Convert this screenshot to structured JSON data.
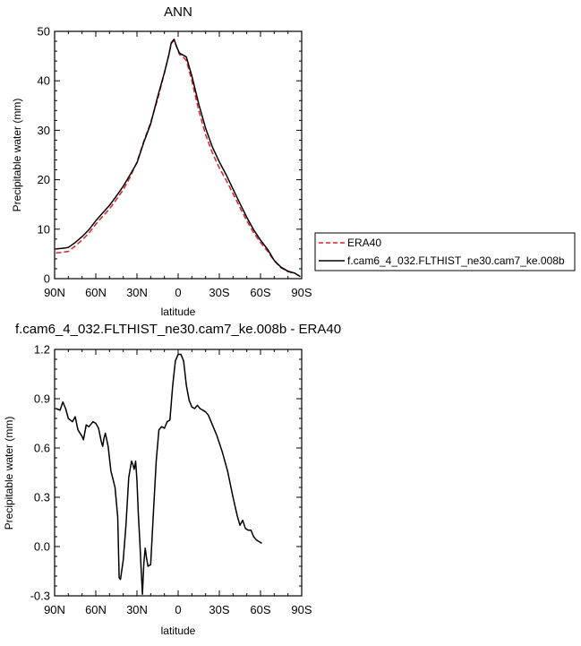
{
  "chart_data": [
    {
      "type": "line",
      "title": "ANN",
      "xlabel": "latitude",
      "ylabel": "Precipitable water (mm)",
      "ylim": [
        0,
        50
      ],
      "yticks": [
        "0",
        "10",
        "20",
        "30",
        "40",
        "50"
      ],
      "xlim": [
        90,
        -90
      ],
      "xticks": [
        {
          "v": 90,
          "label": "90N"
        },
        {
          "v": 60,
          "label": "60N"
        },
        {
          "v": 30,
          "label": "30N"
        },
        {
          "v": 0,
          "label": "0"
        },
        {
          "v": -30,
          "label": "30S"
        },
        {
          "v": -60,
          "label": "60S"
        },
        {
          "v": -90,
          "label": "90S"
        }
      ],
      "legend_position": "right",
      "series": [
        {
          "name": "ERA40",
          "color": "#e0202a",
          "dash": true,
          "points": [
            [
              89,
              5.2
            ],
            [
              85,
              5.3
            ],
            [
              80,
              5.5
            ],
            [
              75,
              6.6
            ],
            [
              70,
              7.8
            ],
            [
              65,
              9.2
            ],
            [
              60,
              11.0
            ],
            [
              55,
              12.6
            ],
            [
              50,
              14.1
            ],
            [
              45,
              16.0
            ],
            [
              40,
              18.0
            ],
            [
              35,
              20.5
            ],
            [
              30,
              23.6
            ],
            [
              25,
              27.8
            ],
            [
              20,
              31.6
            ],
            [
              15,
              36.2
            ],
            [
              10,
              41.6
            ],
            [
              7,
              45.0
            ],
            [
              5,
              47.5
            ],
            [
              3,
              48.2
            ],
            [
              1,
              46.8
            ],
            [
              -1,
              45.3
            ],
            [
              -3,
              45.0
            ],
            [
              -6,
              44.1
            ],
            [
              -10,
              40.0
            ],
            [
              -15,
              34.0
            ],
            [
              -20,
              29.1
            ],
            [
              -25,
              25.4
            ],
            [
              -30,
              22.4
            ],
            [
              -35,
              19.9
            ],
            [
              -40,
              17.2
            ],
            [
              -45,
              14.4
            ],
            [
              -50,
              11.7
            ],
            [
              -55,
              9.3
            ],
            [
              -60,
              7.3
            ],
            [
              -65,
              5.6
            ],
            [
              -70,
              3.6
            ],
            [
              -75,
              2.2
            ],
            [
              -80,
              1.4
            ],
            [
              -85,
              1.1
            ],
            [
              -89,
              0.4
            ]
          ]
        },
        {
          "name": "f.cam6_4_032.FLTHIST_ne30.cam7_ke.008b",
          "color": "#000000",
          "dash": false,
          "points": [
            [
              89,
              6.0
            ],
            [
              85,
              6.1
            ],
            [
              80,
              6.3
            ],
            [
              75,
              7.3
            ],
            [
              70,
              8.5
            ],
            [
              65,
              9.9
            ],
            [
              60,
              11.7
            ],
            [
              55,
              13.3
            ],
            [
              50,
              14.8
            ],
            [
              45,
              16.7
            ],
            [
              40,
              18.7
            ],
            [
              35,
              21.0
            ],
            [
              30,
              23.4
            ],
            [
              25,
              27.6
            ],
            [
              20,
              31.3
            ],
            [
              15,
              36.7
            ],
            [
              10,
              41.7
            ],
            [
              7,
              45.0
            ],
            [
              5,
              47.7
            ],
            [
              3,
              48.4
            ],
            [
              1,
              46.8
            ],
            [
              -1,
              45.6
            ],
            [
              -3,
              45.3
            ],
            [
              -6,
              44.8
            ],
            [
              -10,
              41.0
            ],
            [
              -15,
              35.3
            ],
            [
              -20,
              30.4
            ],
            [
              -25,
              26.6
            ],
            [
              -30,
              23.6
            ],
            [
              -35,
              21.0
            ],
            [
              -40,
              18.1
            ],
            [
              -45,
              15.2
            ],
            [
              -50,
              12.4
            ],
            [
              -55,
              9.9
            ],
            [
              -60,
              7.8
            ],
            [
              -65,
              6.0
            ],
            [
              -70,
              3.7
            ],
            [
              -75,
              2.3
            ],
            [
              -80,
              1.5
            ],
            [
              -85,
              1.1
            ],
            [
              -89,
              0.4
            ]
          ]
        }
      ]
    },
    {
      "type": "line",
      "title": "f.cam6_4_032.FLTHIST_ne30.cam7_ke.008b - ERA40",
      "xlabel": "latitude",
      "ylabel": "Precipitable water (mm)",
      "ylim": [
        -0.3,
        1.2
      ],
      "yticks": [
        "-0.3",
        "0.0",
        "0.3",
        "0.6",
        "0.9",
        "1.2"
      ],
      "xlim": [
        90,
        -90
      ],
      "xticks": [
        {
          "v": 90,
          "label": "90N"
        },
        {
          "v": 60,
          "label": "60N"
        },
        {
          "v": 30,
          "label": "30N"
        },
        {
          "v": 0,
          "label": "0"
        },
        {
          "v": -30,
          "label": "30S"
        },
        {
          "v": -60,
          "label": "60S"
        },
        {
          "v": -90,
          "label": "90S"
        }
      ],
      "series": [
        {
          "color": "#000000",
          "dash": false,
          "points": [
            [
              89,
              0.84
            ],
            [
              86,
              0.83
            ],
            [
              84,
              0.88
            ],
            [
              82,
              0.84
            ],
            [
              80,
              0.78
            ],
            [
              77,
              0.76
            ],
            [
              75,
              0.79
            ],
            [
              73,
              0.71
            ],
            [
              70,
              0.67
            ],
            [
              69,
              0.65
            ],
            [
              67,
              0.74
            ],
            [
              65,
              0.73
            ],
            [
              62,
              0.76
            ],
            [
              60,
              0.75
            ],
            [
              58,
              0.72
            ],
            [
              56,
              0.64
            ],
            [
              55,
              0.61
            ],
            [
              54,
              0.66
            ],
            [
              53,
              0.69
            ],
            [
              51,
              0.61
            ],
            [
              49,
              0.46
            ],
            [
              46,
              0.36
            ],
            [
              44,
              0.18
            ],
            [
              43,
              -0.19
            ],
            [
              42,
              -0.2
            ],
            [
              40,
              -0.08
            ],
            [
              38,
              0.13
            ],
            [
              36,
              0.42
            ],
            [
              34,
              0.52
            ],
            [
              33,
              0.5
            ],
            [
              32,
              0.47
            ],
            [
              31,
              0.52
            ],
            [
              30,
              0.4
            ],
            [
              29,
              0.2
            ],
            [
              28,
              0.04
            ],
            [
              27,
              -0.13
            ],
            [
              26,
              -0.29
            ],
            [
              25,
              -0.1
            ],
            [
              24,
              -0.01
            ],
            [
              23,
              -0.07
            ],
            [
              22,
              -0.12
            ],
            [
              20,
              -0.11
            ],
            [
              18,
              0.21
            ],
            [
              16,
              0.52
            ],
            [
              14,
              0.71
            ],
            [
              12,
              0.73
            ],
            [
              10,
              0.72
            ],
            [
              8,
              0.76
            ],
            [
              6,
              0.77
            ],
            [
              4,
              0.98
            ],
            [
              2,
              1.13
            ],
            [
              0,
              1.17
            ],
            [
              -2,
              1.17
            ],
            [
              -4,
              1.13
            ],
            [
              -6,
              0.98
            ],
            [
              -8,
              0.89
            ],
            [
              -10,
              0.85
            ],
            [
              -12,
              0.84
            ],
            [
              -14,
              0.86
            ],
            [
              -16,
              0.84
            ],
            [
              -18,
              0.83
            ],
            [
              -20,
              0.82
            ],
            [
              -22,
              0.8
            ],
            [
              -24,
              0.76
            ],
            [
              -28,
              0.68
            ],
            [
              -32,
              0.58
            ],
            [
              -36,
              0.46
            ],
            [
              -40,
              0.3
            ],
            [
              -43,
              0.19
            ],
            [
              -45,
              0.13
            ],
            [
              -47,
              0.16
            ],
            [
              -49,
              0.11
            ],
            [
              -51,
              0.1
            ],
            [
              -53,
              0.1
            ],
            [
              -55,
              0.06
            ],
            [
              -57,
              0.04
            ],
            [
              -59,
              0.03
            ],
            [
              -61,
              0.02
            ]
          ]
        }
      ]
    }
  ]
}
